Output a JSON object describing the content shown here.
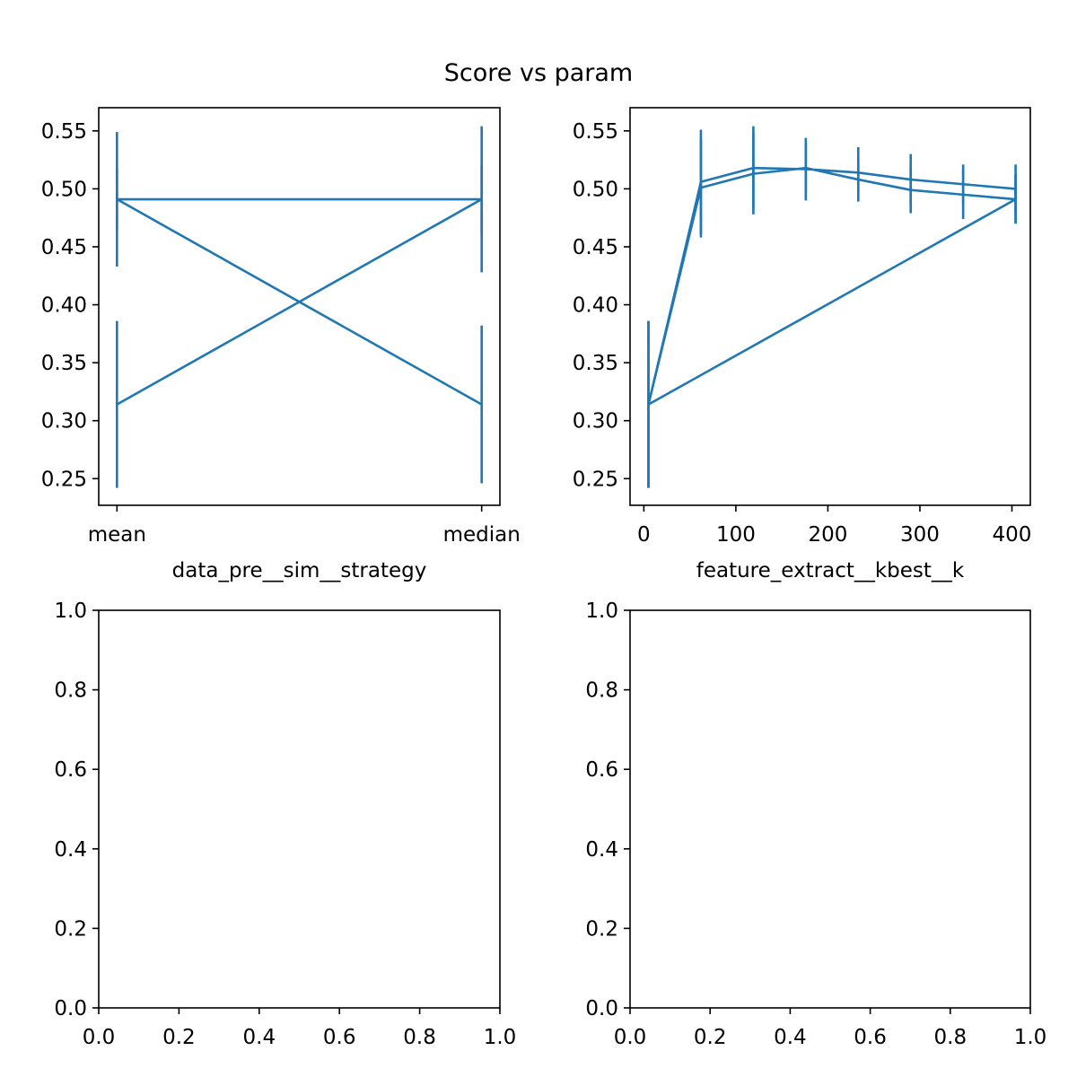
{
  "figure": {
    "title": "Score vs param"
  },
  "colors": {
    "series": "#1f77b4",
    "axes": "#000000"
  },
  "chart_data": [
    {
      "type": "line",
      "panel": "top-left",
      "xlabel": "data_pre__sim__strategy",
      "ylabel": "",
      "x_scale": "categorical",
      "categories": [
        "mean",
        "median"
      ],
      "ylim": [
        0.227,
        0.57
      ],
      "yticks": [
        0.25,
        0.3,
        0.35,
        0.4,
        0.45,
        0.5,
        0.55
      ],
      "ytick_labels": [
        "0.25",
        "0.30",
        "0.35",
        "0.40",
        "0.45",
        "0.50",
        "0.55"
      ],
      "error_bars": true,
      "points": [
        {
          "x": "mean",
          "y": 0.491,
          "err": 0.058
        },
        {
          "x": "median",
          "y": 0.314,
          "err": 0.068
        },
        {
          "x": "mean",
          "y": 0.491,
          "err": 0.026
        },
        {
          "x": "median",
          "y": 0.491,
          "err": 0.03
        },
        {
          "x": "mean",
          "y": 0.314,
          "err": 0.072
        },
        {
          "x": "median",
          "y": 0.491,
          "err": 0.063
        }
      ]
    },
    {
      "type": "line",
      "panel": "top-right",
      "xlabel": "feature_extract__kbest__k",
      "ylabel": "",
      "xlim": [
        -15,
        420
      ],
      "xticks": [
        0,
        100,
        200,
        300,
        400
      ],
      "xtick_labels": [
        "0",
        "100",
        "200",
        "300",
        "400"
      ],
      "ylim": [
        0.227,
        0.57
      ],
      "yticks": [
        0.25,
        0.3,
        0.35,
        0.4,
        0.45,
        0.5,
        0.55
      ],
      "ytick_labels": [
        "0.25",
        "0.30",
        "0.35",
        "0.40",
        "0.45",
        "0.50",
        "0.55"
      ],
      "error_bars": true,
      "points": [
        {
          "x": 5,
          "y": 0.314,
          "err": 0.072
        },
        {
          "x": 62,
          "y": 0.506,
          "err": 0.045
        },
        {
          "x": 119,
          "y": 0.518,
          "err": 0.036
        },
        {
          "x": 176,
          "y": 0.517,
          "err": 0.027
        },
        {
          "x": 233,
          "y": 0.514,
          "err": 0.022
        },
        {
          "x": 290,
          "y": 0.508,
          "err": 0.022
        },
        {
          "x": 347,
          "y": 0.504,
          "err": 0.017
        },
        {
          "x": 404,
          "y": 0.5,
          "err": 0.021
        },
        {
          "x": 404,
          "y": 0.491,
          "err": 0.021
        },
        {
          "x": 347,
          "y": 0.495,
          "err": 0.021
        },
        {
          "x": 290,
          "y": 0.499,
          "err": 0.02
        },
        {
          "x": 233,
          "y": 0.508,
          "err": 0.019
        },
        {
          "x": 176,
          "y": 0.518,
          "err": 0.021
        },
        {
          "x": 119,
          "y": 0.513,
          "err": 0.035
        },
        {
          "x": 62,
          "y": 0.501,
          "err": 0.043
        },
        {
          "x": 5,
          "y": 0.314,
          "err": 0.072
        },
        {
          "x": 404,
          "y": 0.491,
          "err": 0.021
        }
      ]
    },
    {
      "type": "line",
      "panel": "bottom-left",
      "xlabel": "",
      "ylabel": "",
      "xlim": [
        0,
        1
      ],
      "ylim": [
        0,
        1
      ],
      "xticks": [
        0.0,
        0.2,
        0.4,
        0.6,
        0.8,
        1.0
      ],
      "xtick_labels": [
        "0.0",
        "0.2",
        "0.4",
        "0.6",
        "0.8",
        "1.0"
      ],
      "yticks": [
        0.0,
        0.2,
        0.4,
        0.6,
        0.8,
        1.0
      ],
      "ytick_labels": [
        "0.0",
        "0.2",
        "0.4",
        "0.6",
        "0.8",
        "1.0"
      ],
      "points": []
    },
    {
      "type": "line",
      "panel": "bottom-right",
      "xlabel": "",
      "ylabel": "",
      "xlim": [
        0,
        1
      ],
      "ylim": [
        0,
        1
      ],
      "xticks": [
        0.0,
        0.2,
        0.4,
        0.6,
        0.8,
        1.0
      ],
      "xtick_labels": [
        "0.0",
        "0.2",
        "0.4",
        "0.6",
        "0.8",
        "1.0"
      ],
      "yticks": [
        0.0,
        0.2,
        0.4,
        0.6,
        0.8,
        1.0
      ],
      "ytick_labels": [
        "0.0",
        "0.2",
        "0.4",
        "0.6",
        "0.8",
        "1.0"
      ],
      "points": []
    }
  ]
}
